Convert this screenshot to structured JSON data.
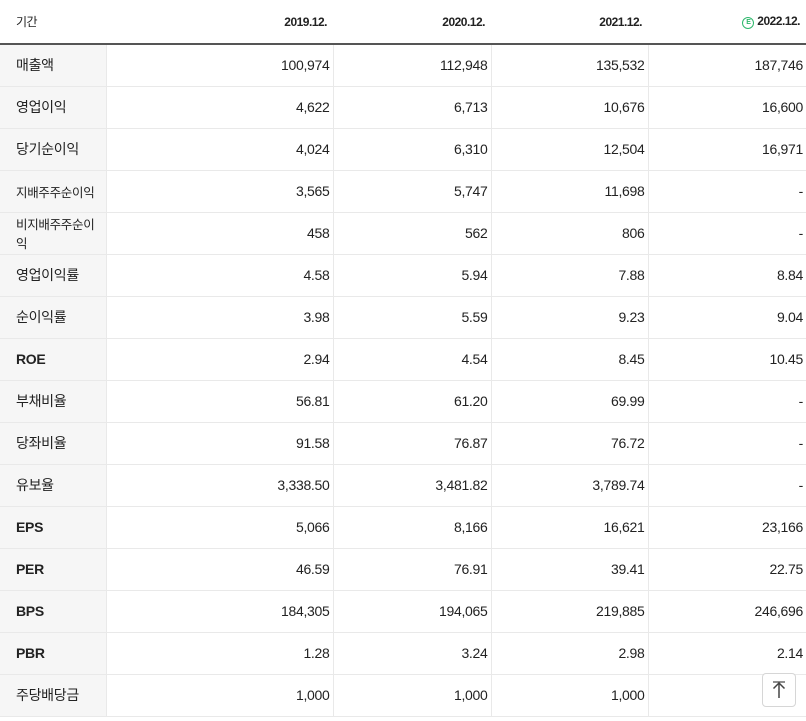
{
  "header": {
    "label": "기간",
    "periods": [
      "2019.12.",
      "2020.12.",
      "2021.12.",
      "2022.12."
    ],
    "estimate_marker": "E"
  },
  "rows": [
    {
      "label": "매출액",
      "values": [
        "100,974",
        "112,948",
        "135,532",
        "187,746"
      ]
    },
    {
      "label": "영업이익",
      "values": [
        "4,622",
        "6,713",
        "10,676",
        "16,600"
      ]
    },
    {
      "label": "당기순이익",
      "values": [
        "4,024",
        "6,310",
        "12,504",
        "16,971"
      ]
    },
    {
      "label": "지배주주순이익",
      "values": [
        "3,565",
        "5,747",
        "11,698",
        "-"
      ]
    },
    {
      "label": "비지배주주순이익",
      "values": [
        "458",
        "562",
        "806",
        "-"
      ]
    },
    {
      "label": "영업이익률",
      "values": [
        "4.58",
        "5.94",
        "7.88",
        "8.84"
      ]
    },
    {
      "label": "순이익률",
      "values": [
        "3.98",
        "5.59",
        "9.23",
        "9.04"
      ]
    },
    {
      "label": "ROE",
      "values": [
        "2.94",
        "4.54",
        "8.45",
        "10.45"
      ]
    },
    {
      "label": "부채비율",
      "values": [
        "56.81",
        "61.20",
        "69.99",
        "-"
      ]
    },
    {
      "label": "당좌비율",
      "values": [
        "91.58",
        "76.87",
        "76.72",
        "-"
      ]
    },
    {
      "label": "유보율",
      "values": [
        "3,338.50",
        "3,481.82",
        "3,789.74",
        "-"
      ]
    },
    {
      "label": "EPS",
      "values": [
        "5,066",
        "8,166",
        "16,621",
        "23,166"
      ]
    },
    {
      "label": "PER",
      "values": [
        "46.59",
        "76.91",
        "39.41",
        "22.75"
      ]
    },
    {
      "label": "BPS",
      "values": [
        "184,305",
        "194,065",
        "219,885",
        "246,696"
      ]
    },
    {
      "label": "PBR",
      "values": [
        "1.28",
        "3.24",
        "2.98",
        "2.14"
      ]
    },
    {
      "label": "주당배당금",
      "values": [
        "1,000",
        "1,000",
        "1,000",
        ""
      ]
    }
  ],
  "scroll_top_icon": "arrow-up-icon",
  "colors": {
    "estimate_green": "#2eb86c",
    "label_bg": "#f6f6f6",
    "header_rule": "#555555"
  }
}
